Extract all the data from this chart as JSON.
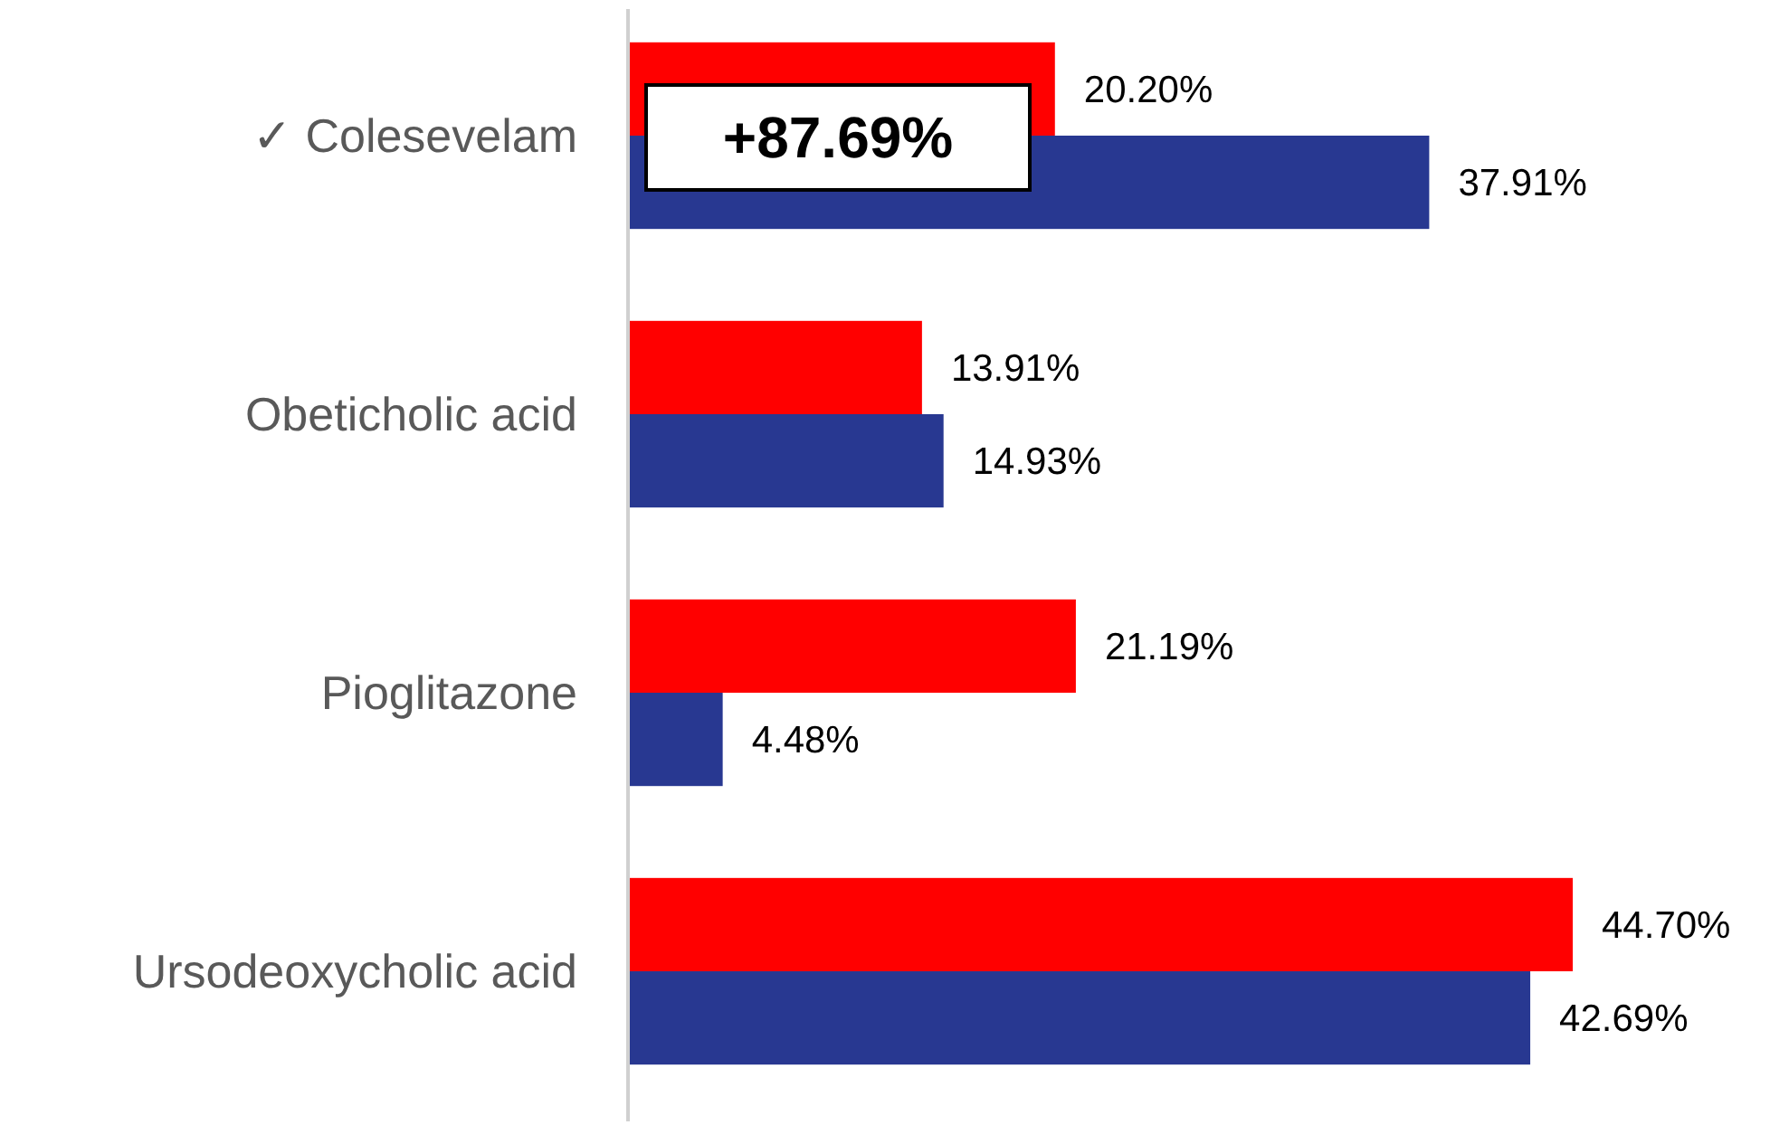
{
  "chart_data": {
    "type": "bar",
    "orientation": "horizontal",
    "categories": [
      "✓ Colesevelam",
      "Obeticholic acid",
      "Pioglitazone",
      "Ursodeoxycholic acid"
    ],
    "series": [
      {
        "color": "#ff0000",
        "values": [
          20.2,
          13.91,
          21.19,
          44.7
        ],
        "value_labels": [
          "20.20%",
          "13.91%",
          "21.19%",
          "44.70%"
        ]
      },
      {
        "color": "#283891",
        "values": [
          37.91,
          14.93,
          4.48,
          42.69
        ],
        "value_labels": [
          "37.91%",
          "14.93%",
          "4.48%",
          "42.69%"
        ]
      }
    ],
    "annotations": [
      "+87.69%"
    ]
  }
}
